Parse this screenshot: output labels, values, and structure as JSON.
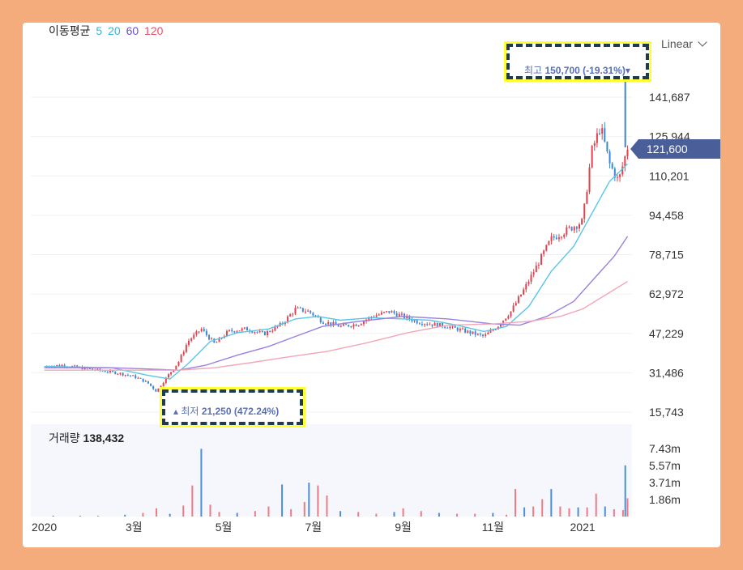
{
  "legend": {
    "title": "이동평균",
    "periods": [
      {
        "label": "5",
        "color": "#33b5d6"
      },
      {
        "label": "20",
        "color": "#33b5d6"
      },
      {
        "label": "60",
        "color": "#6a4fc8"
      },
      {
        "label": "120",
        "color": "#e0506a"
      }
    ]
  },
  "scale_mode": "Linear",
  "current_price": "121,600",
  "max_annotation": {
    "prefix": "최고",
    "value": "150,700 (-19.31%)",
    "marker": "▾"
  },
  "min_annotation": {
    "marker": "▴",
    "prefix": "최저",
    "value": "21,250 (472.24%)"
  },
  "volume": {
    "title": "거래량",
    "value": "138,432"
  },
  "chart_data": {
    "type": "candlestick",
    "price_axis": {
      "ticks": [
        "141,687",
        "125,944",
        "110,201",
        "94,458",
        "78,715",
        "62,972",
        "47,229",
        "31,486",
        "15,743"
      ],
      "tick_values": [
        141687,
        125944,
        110201,
        94458,
        78715,
        62972,
        47229,
        31486,
        15743
      ]
    },
    "volume_axis": {
      "ticks": [
        "7.43m",
        "5.57m",
        "3.71m",
        "1.86m"
      ],
      "tick_values": [
        7.43,
        5.57,
        3.71,
        1.86
      ]
    },
    "time_axis": {
      "labels": [
        "2020",
        "3월",
        "5월",
        "7월",
        "9월",
        "11월",
        "2021"
      ],
      "label_pos": [
        0,
        2,
        4,
        6,
        8,
        10,
        12
      ]
    },
    "x_range": [
      -0.3,
      13.1
    ],
    "close_series": [
      [
        0,
        34000
      ],
      [
        0.4,
        34500
      ],
      [
        0.8,
        33500
      ],
      [
        1.2,
        32500
      ],
      [
        1.6,
        31500
      ],
      [
        2.0,
        30000
      ],
      [
        2.3,
        27500
      ],
      [
        2.5,
        24000
      ],
      [
        2.7,
        29000
      ],
      [
        3.0,
        36000
      ],
      [
        3.2,
        44000
      ],
      [
        3.5,
        49000
      ],
      [
        3.8,
        43000
      ],
      [
        4.1,
        48000
      ],
      [
        4.5,
        49000
      ],
      [
        4.9,
        47000
      ],
      [
        5.3,
        51000
      ],
      [
        5.6,
        57000
      ],
      [
        5.9,
        56000
      ],
      [
        6.2,
        52000
      ],
      [
        6.6,
        50000
      ],
      [
        7.0,
        51000
      ],
      [
        7.3,
        54000
      ],
      [
        7.7,
        56000
      ],
      [
        8.0,
        54000
      ],
      [
        8.3,
        52000
      ],
      [
        8.6,
        51000
      ],
      [
        9.0,
        50000
      ],
      [
        9.4,
        48000
      ],
      [
        9.8,
        46000
      ],
      [
        10.1,
        50000
      ],
      [
        10.4,
        56000
      ],
      [
        10.7,
        65000
      ],
      [
        11.0,
        75000
      ],
      [
        11.3,
        85000
      ],
      [
        11.6,
        88000
      ],
      [
        12.0,
        92000
      ],
      [
        12.2,
        120000
      ],
      [
        12.4,
        130000
      ],
      [
        12.6,
        115000
      ],
      [
        12.8,
        108000
      ],
      [
        13.0,
        121600
      ]
    ],
    "ma_series": [
      {
        "name": "20",
        "color": "#5bc5e6",
        "points": [
          [
            0,
            34000
          ],
          [
            1.5,
            33500
          ],
          [
            2.3,
            30500
          ],
          [
            2.8,
            29000
          ],
          [
            3.2,
            35000
          ],
          [
            3.7,
            44000
          ],
          [
            4.3,
            47500
          ],
          [
            5.0,
            49000
          ],
          [
            5.6,
            53000
          ],
          [
            6.1,
            54000
          ],
          [
            6.6,
            52500
          ],
          [
            7.3,
            53500
          ],
          [
            8.0,
            53000
          ],
          [
            8.6,
            52500
          ],
          [
            9.2,
            50500
          ],
          [
            9.8,
            48000
          ],
          [
            10.3,
            50000
          ],
          [
            10.8,
            58000
          ],
          [
            11.3,
            72000
          ],
          [
            11.8,
            82000
          ],
          [
            12.2,
            95000
          ],
          [
            12.6,
            108000
          ],
          [
            13.0,
            115000
          ]
        ]
      },
      {
        "name": "60",
        "color": "#9a80e0",
        "points": [
          [
            0,
            33500
          ],
          [
            1.5,
            33500
          ],
          [
            2.3,
            33000
          ],
          [
            3.0,
            32500
          ],
          [
            3.6,
            34500
          ],
          [
            4.3,
            38500
          ],
          [
            5.0,
            42000
          ],
          [
            5.6,
            46000
          ],
          [
            6.2,
            50000
          ],
          [
            7.0,
            52000
          ],
          [
            8.0,
            54000
          ],
          [
            9.0,
            53000
          ],
          [
            10.0,
            51000
          ],
          [
            10.6,
            50500
          ],
          [
            11.2,
            54000
          ],
          [
            11.8,
            60000
          ],
          [
            12.3,
            70000
          ],
          [
            12.7,
            78000
          ],
          [
            13.0,
            86000
          ]
        ]
      },
      {
        "name": "120",
        "color": "#f2a7b6",
        "points": [
          [
            0,
            32500
          ],
          [
            1.5,
            32500
          ],
          [
            2.3,
            32500
          ],
          [
            3.0,
            32500
          ],
          [
            3.8,
            33500
          ],
          [
            4.6,
            35500
          ],
          [
            5.5,
            38000
          ],
          [
            6.3,
            40000
          ],
          [
            7.2,
            43500
          ],
          [
            8.1,
            47500
          ],
          [
            9.0,
            50500
          ],
          [
            10.0,
            51000
          ],
          [
            10.8,
            52000
          ],
          [
            11.5,
            54000
          ],
          [
            12.0,
            57000
          ],
          [
            12.5,
            62500
          ],
          [
            13.0,
            68000
          ]
        ]
      }
    ],
    "volume_series": [
      [
        0.2,
        0.1
      ],
      [
        0.8,
        0.1
      ],
      [
        1.2,
        0.1
      ],
      [
        1.8,
        0.2
      ],
      [
        2.2,
        0.4
      ],
      [
        2.5,
        0.9
      ],
      [
        2.8,
        0.3
      ],
      [
        3.1,
        1.2
      ],
      [
        3.3,
        3.4
      ],
      [
        3.5,
        7.4
      ],
      [
        3.7,
        1.3
      ],
      [
        3.9,
        0.5
      ],
      [
        4.3,
        0.4
      ],
      [
        4.7,
        0.6
      ],
      [
        5.0,
        1.1
      ],
      [
        5.3,
        3.5
      ],
      [
        5.5,
        0.8
      ],
      [
        5.8,
        1.6
      ],
      [
        5.9,
        3.7
      ],
      [
        6.1,
        3.4
      ],
      [
        6.3,
        2.3
      ],
      [
        6.6,
        0.6
      ],
      [
        7.0,
        0.5
      ],
      [
        7.4,
        0.3
      ],
      [
        7.8,
        0.5
      ],
      [
        8.0,
        0.9
      ],
      [
        8.4,
        0.6
      ],
      [
        8.8,
        0.4
      ],
      [
        9.2,
        0.3
      ],
      [
        9.6,
        0.3
      ],
      [
        10.0,
        0.4
      ],
      [
        10.3,
        0.2
      ],
      [
        10.5,
        3.0
      ],
      [
        10.7,
        1.0
      ],
      [
        10.9,
        1.1
      ],
      [
        11.1,
        1.9
      ],
      [
        11.3,
        3.0
      ],
      [
        11.5,
        1.1
      ],
      [
        11.7,
        0.9
      ],
      [
        11.9,
        1.0
      ],
      [
        12.1,
        1.0
      ],
      [
        12.3,
        2.5
      ],
      [
        12.5,
        1.1
      ],
      [
        12.7,
        0.8
      ],
      [
        12.9,
        0.7
      ],
      [
        12.95,
        5.6
      ],
      [
        13.0,
        2.0
      ]
    ]
  }
}
